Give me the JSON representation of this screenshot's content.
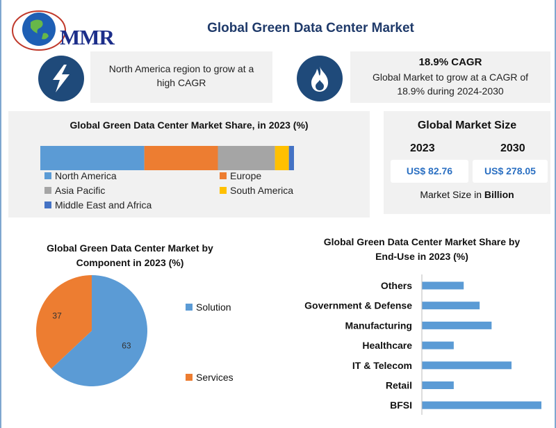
{
  "header": {
    "logo_text": "MMR",
    "title": "Global Green Data Center Market"
  },
  "highlights": {
    "left": {
      "icon": "lightning-icon",
      "text": "North America region to grow at a high CAGR"
    },
    "right": {
      "icon": "flame-icon",
      "heading": "18.9% CAGR",
      "text": "Global Market to grow at a CAGR of 18.9% during 2024-2030"
    }
  },
  "market_size": {
    "title": "Global Market Size",
    "year_1": "2023",
    "year_2": "2030",
    "value_1": "US$ 82.76",
    "value_2": "US$ 278.05",
    "note_prefix": "Market Size in ",
    "note_bold": "Billion"
  },
  "colors": {
    "blue": "#5b9bd5",
    "orange": "#ed7d31",
    "gray": "#a5a5a5",
    "yellow": "#ffc000",
    "dark_blue": "#4472c4",
    "navy": "#1f4a7a"
  },
  "chart_data": [
    {
      "type": "bar",
      "orientation": "horizontal-stacked-100",
      "title": "Global Green Data Center Market Share, in 2023 (%)",
      "series": [
        {
          "name": "North America",
          "value": 41
        },
        {
          "name": "Europe",
          "value": 29
        },
        {
          "name": "Asia Pacific",
          "value": 22.5
        },
        {
          "name": "South America",
          "value": 5.5
        },
        {
          "name": "Middle East and Africa",
          "value": 2
        }
      ],
      "legend": "bottom"
    },
    {
      "type": "pie",
      "title": "Global Green Data Center Market by Component in 2023 (%)",
      "slices": [
        {
          "name": "Solution",
          "value": 63
        },
        {
          "name": "Services",
          "value": 37
        }
      ],
      "legend": "right"
    },
    {
      "type": "bar",
      "orientation": "horizontal",
      "title": "Global Green Data Center Market Share by End-Use in 2023 (%)",
      "categories": [
        "Others",
        "Government & Defense",
        "Manufacturing",
        "Healthcare",
        "IT & Telecom",
        "Retail",
        "BFSI"
      ],
      "values": [
        10.5,
        14.5,
        17.5,
        8.0,
        22.5,
        8.0,
        30.0
      ],
      "xlim": [
        0,
        30
      ]
    }
  ]
}
